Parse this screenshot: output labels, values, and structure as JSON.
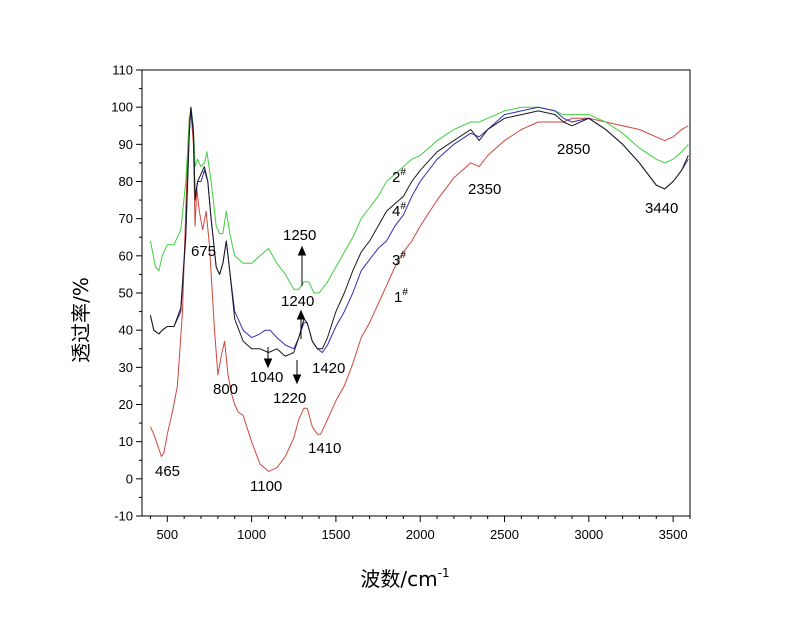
{
  "chart_data": {
    "type": "line",
    "xlabel": "波数/cm",
    "xlabel_sup": "-1",
    "ylabel": "透过率/%",
    "xlim": [
      350,
      3600
    ],
    "ylim": [
      -10,
      110
    ],
    "xticks": [
      "500",
      "1000",
      "1500",
      "2000",
      "2500",
      "3000",
      "3500"
    ],
    "yticks": [
      "-10",
      "0",
      "10",
      "20",
      "30",
      "40",
      "50",
      "60",
      "70",
      "80",
      "90",
      "100",
      "110"
    ],
    "series": [
      {
        "label": "1",
        "color": "#d0463d",
        "points": [
          [
            400,
            14
          ],
          [
            420,
            12
          ],
          [
            450,
            8
          ],
          [
            465,
            6
          ],
          [
            480,
            7
          ],
          [
            500,
            12
          ],
          [
            530,
            18
          ],
          [
            560,
            25
          ],
          [
            590,
            45
          ],
          [
            615,
            80
          ],
          [
            630,
            97
          ],
          [
            640,
            99
          ],
          [
            655,
            90
          ],
          [
            665,
            68
          ],
          [
            675,
            78
          ],
          [
            690,
            72
          ],
          [
            710,
            67
          ],
          [
            730,
            72
          ],
          [
            750,
            63
          ],
          [
            780,
            40
          ],
          [
            800,
            28
          ],
          [
            820,
            33
          ],
          [
            840,
            37
          ],
          [
            860,
            28
          ],
          [
            880,
            23
          ],
          [
            900,
            20
          ],
          [
            920,
            18
          ],
          [
            950,
            17
          ],
          [
            1000,
            10
          ],
          [
            1050,
            4
          ],
          [
            1100,
            2
          ],
          [
            1150,
            3
          ],
          [
            1200,
            6
          ],
          [
            1250,
            11
          ],
          [
            1280,
            16
          ],
          [
            1310,
            19
          ],
          [
            1330,
            19
          ],
          [
            1360,
            14
          ],
          [
            1390,
            12
          ],
          [
            1410,
            12
          ],
          [
            1450,
            16
          ],
          [
            1500,
            21
          ],
          [
            1550,
            25
          ],
          [
            1600,
            31
          ],
          [
            1650,
            38
          ],
          [
            1700,
            42
          ],
          [
            1750,
            47
          ],
          [
            1800,
            52
          ],
          [
            1850,
            57
          ],
          [
            1900,
            61
          ],
          [
            1950,
            64
          ],
          [
            2000,
            68
          ],
          [
            2100,
            75
          ],
          [
            2200,
            81
          ],
          [
            2300,
            85
          ],
          [
            2350,
            84
          ],
          [
            2400,
            87
          ],
          [
            2500,
            91
          ],
          [
            2600,
            94
          ],
          [
            2700,
            96
          ],
          [
            2800,
            96
          ],
          [
            2850,
            96
          ],
          [
            2900,
            97
          ],
          [
            3000,
            97
          ],
          [
            3100,
            96
          ],
          [
            3200,
            95
          ],
          [
            3300,
            94
          ],
          [
            3400,
            92
          ],
          [
            3450,
            91
          ],
          [
            3500,
            92
          ],
          [
            3550,
            94
          ],
          [
            3590,
            95
          ]
        ]
      },
      {
        "label": "2",
        "color": "#3fcf3f",
        "points": [
          [
            400,
            64
          ],
          [
            430,
            57
          ],
          [
            450,
            56
          ],
          [
            470,
            60
          ],
          [
            500,
            63
          ],
          [
            540,
            63
          ],
          [
            580,
            67
          ],
          [
            610,
            80
          ],
          [
            630,
            96
          ],
          [
            640,
            100
          ],
          [
            655,
            95
          ],
          [
            665,
            84
          ],
          [
            680,
            86
          ],
          [
            700,
            84
          ],
          [
            720,
            85
          ],
          [
            735,
            88
          ],
          [
            760,
            80
          ],
          [
            790,
            68
          ],
          [
            810,
            66
          ],
          [
            830,
            66
          ],
          [
            850,
            72
          ],
          [
            870,
            66
          ],
          [
            900,
            60
          ],
          [
            950,
            58
          ],
          [
            1000,
            58
          ],
          [
            1050,
            60
          ],
          [
            1100,
            62
          ],
          [
            1150,
            58
          ],
          [
            1200,
            55
          ],
          [
            1250,
            51
          ],
          [
            1280,
            51
          ],
          [
            1310,
            53
          ],
          [
            1340,
            53
          ],
          [
            1370,
            50
          ],
          [
            1400,
            50
          ],
          [
            1450,
            53
          ],
          [
            1500,
            57
          ],
          [
            1550,
            61
          ],
          [
            1600,
            65
          ],
          [
            1650,
            70
          ],
          [
            1700,
            73
          ],
          [
            1750,
            76
          ],
          [
            1800,
            80
          ],
          [
            1850,
            82
          ],
          [
            1900,
            84
          ],
          [
            1950,
            86
          ],
          [
            2000,
            87
          ],
          [
            2100,
            91
          ],
          [
            2200,
            94
          ],
          [
            2300,
            96
          ],
          [
            2350,
            96
          ],
          [
            2400,
            97
          ],
          [
            2500,
            99
          ],
          [
            2600,
            100
          ],
          [
            2700,
            100
          ],
          [
            2800,
            99
          ],
          [
            2850,
            98
          ],
          [
            2900,
            98
          ],
          [
            3000,
            98
          ],
          [
            3100,
            96
          ],
          [
            3200,
            93
          ],
          [
            3300,
            89
          ],
          [
            3400,
            86
          ],
          [
            3450,
            85
          ],
          [
            3500,
            86
          ],
          [
            3550,
            88
          ],
          [
            3590,
            90
          ]
        ]
      },
      {
        "label": "3",
        "color": "#2f2fb5",
        "points": [
          [
            400,
            44
          ],
          [
            420,
            40
          ],
          [
            450,
            39
          ],
          [
            470,
            40
          ],
          [
            500,
            41
          ],
          [
            540,
            41
          ],
          [
            580,
            45
          ],
          [
            610,
            65
          ],
          [
            630,
            92
          ],
          [
            640,
            100
          ],
          [
            655,
            93
          ],
          [
            665,
            76
          ],
          [
            680,
            80
          ],
          [
            700,
            80
          ],
          [
            720,
            83
          ],
          [
            740,
            80
          ],
          [
            760,
            70
          ],
          [
            790,
            57
          ],
          [
            810,
            55
          ],
          [
            830,
            58
          ],
          [
            850,
            64
          ],
          [
            870,
            56
          ],
          [
            900,
            45
          ],
          [
            950,
            40
          ],
          [
            1000,
            38
          ],
          [
            1050,
            39
          ],
          [
            1080,
            40
          ],
          [
            1110,
            40
          ],
          [
            1150,
            38
          ],
          [
            1200,
            36
          ],
          [
            1250,
            35
          ],
          [
            1280,
            38
          ],
          [
            1310,
            42
          ],
          [
            1330,
            42
          ],
          [
            1360,
            37
          ],
          [
            1390,
            35
          ],
          [
            1420,
            34
          ],
          [
            1450,
            36
          ],
          [
            1500,
            41
          ],
          [
            1550,
            45
          ],
          [
            1600,
            50
          ],
          [
            1650,
            56
          ],
          [
            1700,
            59
          ],
          [
            1750,
            62
          ],
          [
            1800,
            64
          ],
          [
            1850,
            68
          ],
          [
            1900,
            71
          ],
          [
            1950,
            76
          ],
          [
            2000,
            80
          ],
          [
            2100,
            86
          ],
          [
            2200,
            90
          ],
          [
            2300,
            93
          ],
          [
            2350,
            92
          ],
          [
            2400,
            94
          ],
          [
            2500,
            98
          ],
          [
            2600,
            99
          ],
          [
            2700,
            100
          ],
          [
            2800,
            99
          ],
          [
            2850,
            97
          ],
          [
            2900,
            96
          ],
          [
            3000,
            97
          ],
          [
            3100,
            94
          ],
          [
            3200,
            90
          ],
          [
            3300,
            85
          ],
          [
            3400,
            79
          ],
          [
            3450,
            78
          ],
          [
            3500,
            80
          ],
          [
            3550,
            83
          ],
          [
            3590,
            86
          ]
        ]
      },
      {
        "label": "4",
        "color": "#1a1a1a",
        "points": [
          [
            400,
            44
          ],
          [
            420,
            40
          ],
          [
            450,
            39
          ],
          [
            470,
            40
          ],
          [
            500,
            41
          ],
          [
            540,
            41
          ],
          [
            580,
            46
          ],
          [
            610,
            66
          ],
          [
            630,
            93
          ],
          [
            640,
            100
          ],
          [
            655,
            93
          ],
          [
            665,
            75
          ],
          [
            680,
            80
          ],
          [
            700,
            82
          ],
          [
            720,
            84
          ],
          [
            740,
            80
          ],
          [
            760,
            70
          ],
          [
            790,
            57
          ],
          [
            810,
            55
          ],
          [
            830,
            58
          ],
          [
            850,
            64
          ],
          [
            870,
            56
          ],
          [
            900,
            43
          ],
          [
            950,
            37
          ],
          [
            1000,
            35
          ],
          [
            1050,
            35
          ],
          [
            1100,
            34
          ],
          [
            1150,
            35
          ],
          [
            1200,
            33
          ],
          [
            1250,
            34
          ],
          [
            1280,
            38
          ],
          [
            1310,
            43
          ],
          [
            1330,
            42
          ],
          [
            1360,
            37
          ],
          [
            1390,
            35
          ],
          [
            1420,
            35
          ],
          [
            1450,
            38
          ],
          [
            1500,
            45
          ],
          [
            1550,
            50
          ],
          [
            1600,
            56
          ],
          [
            1650,
            61
          ],
          [
            1700,
            64
          ],
          [
            1750,
            68
          ],
          [
            1800,
            72
          ],
          [
            1850,
            74
          ],
          [
            1900,
            76
          ],
          [
            1950,
            80
          ],
          [
            2000,
            83
          ],
          [
            2100,
            88
          ],
          [
            2200,
            91
          ],
          [
            2300,
            94
          ],
          [
            2350,
            91
          ],
          [
            2400,
            94
          ],
          [
            2500,
            97
          ],
          [
            2600,
            98
          ],
          [
            2700,
            99
          ],
          [
            2800,
            98
          ],
          [
            2850,
            96
          ],
          [
            2900,
            95
          ],
          [
            3000,
            97
          ],
          [
            3100,
            94
          ],
          [
            3200,
            90
          ],
          [
            3300,
            85
          ],
          [
            3400,
            79
          ],
          [
            3450,
            78
          ],
          [
            3500,
            80
          ],
          [
            3550,
            83
          ],
          [
            3590,
            87
          ]
        ]
      }
    ],
    "annotations": {
      "p465": "465",
      "p675": "675",
      "p800": "800",
      "p1040": "1040",
      "p1100": "1100",
      "p1220": "1220",
      "p1240": "1240",
      "p1250": "1250",
      "p1410": "1410",
      "p1420": "1420",
      "p2350": "2350",
      "p2850": "2850",
      "p3440": "3440"
    },
    "curve_labels": {
      "c1": "1",
      "c2": "2",
      "c3": "3",
      "c4": "4",
      "mark": "#"
    }
  }
}
